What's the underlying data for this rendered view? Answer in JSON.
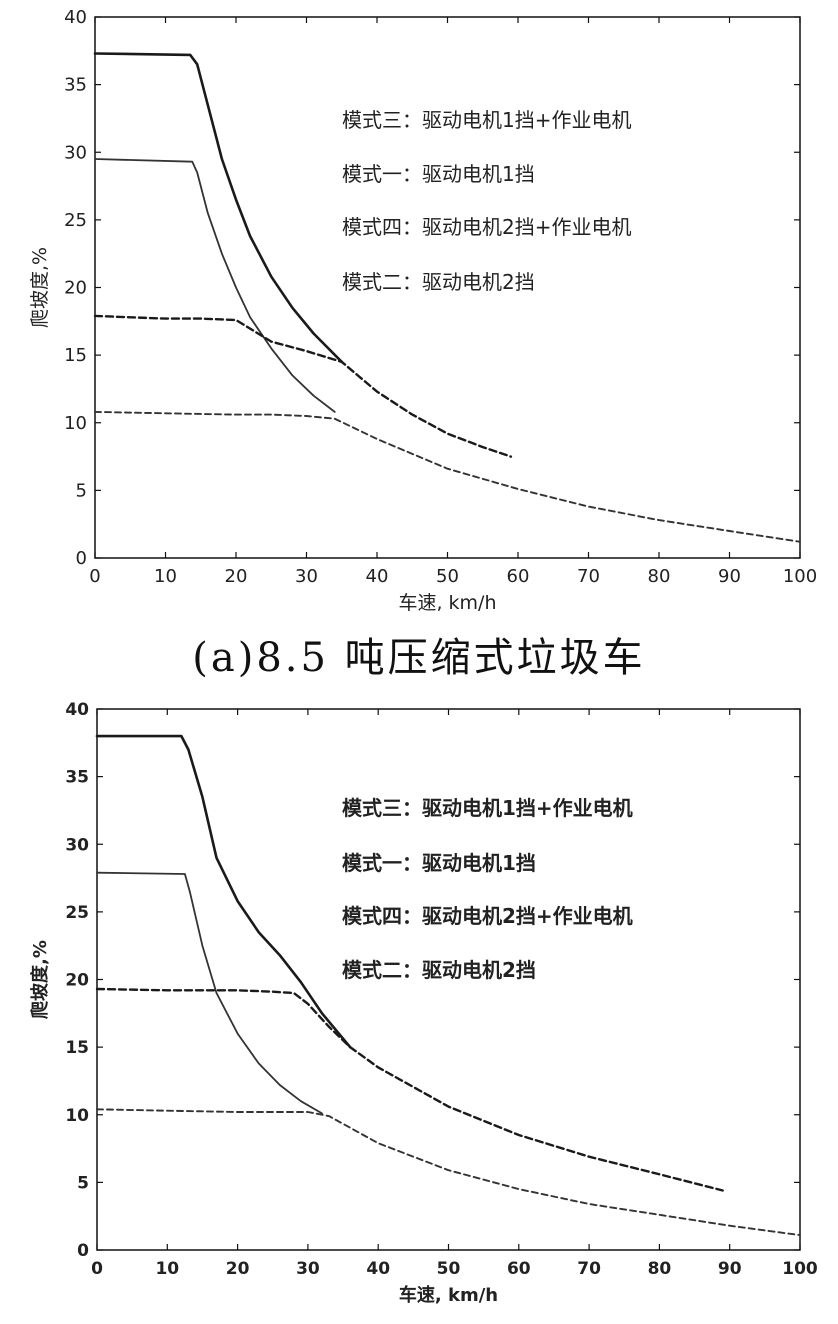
{
  "caption_a": "(a)8.5 吨压缩式垃圾车",
  "chart_data": [
    {
      "id": "a",
      "type": "line",
      "xlabel": "车速, km/h",
      "ylabel": "爬坡度,%",
      "xlim": [
        0,
        100
      ],
      "ylim": [
        0,
        40
      ],
      "xticks": [
        0,
        10,
        20,
        30,
        40,
        50,
        60,
        70,
        80,
        90,
        100
      ],
      "yticks": [
        0,
        5,
        10,
        15,
        20,
        25,
        30,
        35,
        40
      ],
      "grid": false,
      "legend_position": "top-right",
      "legend": [
        "模式三：驱动电机1挡+作业电机",
        "模式一：驱动电机1挡",
        "模式四：驱动电机2挡+作业电机",
        "模式二：驱动电机2挡"
      ],
      "series": [
        {
          "name": "模式三：驱动电机1挡+作业电机",
          "style": "solid-bold",
          "x": [
            0,
            13.5,
            14.5,
            16,
            18,
            20,
            22,
            25,
            28,
            31,
            35
          ],
          "y": [
            37.3,
            37.2,
            36.5,
            33.5,
            29.5,
            26.5,
            23.8,
            20.8,
            18.5,
            16.6,
            14.5
          ]
        },
        {
          "name": "模式一：驱动电机1挡",
          "style": "solid",
          "x": [
            0,
            13.8,
            14.5,
            16,
            18,
            20,
            22,
            25,
            28,
            31,
            34
          ],
          "y": [
            29.5,
            29.3,
            28.5,
            25.5,
            22.5,
            20.0,
            17.8,
            15.5,
            13.5,
            12.0,
            10.8
          ]
        },
        {
          "name": "模式四：驱动电机2挡+作业电机",
          "style": "dashed-bold",
          "x": [
            0,
            5,
            10,
            15,
            20,
            25,
            30,
            35,
            40,
            45,
            50,
            55,
            59
          ],
          "y": [
            17.9,
            17.8,
            17.7,
            17.7,
            17.6,
            16.0,
            15.3,
            14.5,
            12.3,
            10.6,
            9.2,
            8.2,
            7.5
          ]
        },
        {
          "name": "模式二：驱动电机2挡",
          "style": "dashed",
          "x": [
            0,
            10,
            20,
            25,
            30,
            34,
            40,
            50,
            60,
            70,
            80,
            90,
            100
          ],
          "y": [
            10.8,
            10.7,
            10.6,
            10.6,
            10.5,
            10.3,
            8.8,
            6.6,
            5.1,
            3.8,
            2.8,
            2.0,
            1.2
          ]
        }
      ]
    },
    {
      "id": "b",
      "type": "line",
      "xlabel": "车速, km/h",
      "ylabel": "爬坡度,%",
      "xlim": [
        0,
        100
      ],
      "ylim": [
        0,
        40
      ],
      "xticks": [
        0,
        10,
        20,
        30,
        40,
        50,
        60,
        70,
        80,
        90,
        100
      ],
      "yticks": [
        0,
        5,
        10,
        15,
        20,
        25,
        30,
        35,
        40
      ],
      "grid": false,
      "legend_position": "top-right",
      "legend": [
        "模式三：驱动电机1挡+作业电机",
        "模式一：驱动电机1挡",
        "模式四：驱动电机2挡+作业电机",
        "模式二：驱动电机2挡"
      ],
      "series": [
        {
          "name": "模式三：驱动电机1挡+作业电机",
          "style": "solid-bold",
          "x": [
            0,
            12,
            13,
            15,
            17,
            20,
            23,
            26,
            29,
            32,
            36
          ],
          "y": [
            38.0,
            38.0,
            37.0,
            33.5,
            29.0,
            25.8,
            23.5,
            21.8,
            19.8,
            17.5,
            15.0
          ]
        },
        {
          "name": "模式一：驱动电机1挡",
          "style": "solid",
          "x": [
            0,
            12.5,
            13.2,
            15,
            17,
            20,
            23,
            26,
            29,
            32
          ],
          "y": [
            27.9,
            27.8,
            26.5,
            22.5,
            19.0,
            16.0,
            13.8,
            12.2,
            11.0,
            10.1
          ]
        },
        {
          "name": "模式四：驱动电机2挡+作业电机",
          "style": "dashed-bold",
          "x": [
            0,
            10,
            20,
            25,
            28,
            30,
            33,
            36,
            40,
            50,
            60,
            70,
            80,
            89
          ],
          "y": [
            19.3,
            19.2,
            19.2,
            19.1,
            19.0,
            18.2,
            16.5,
            15.0,
            13.5,
            10.6,
            8.5,
            6.9,
            5.6,
            4.4
          ]
        },
        {
          "name": "模式二：驱动电机2挡",
          "style": "dashed",
          "x": [
            0,
            10,
            20,
            30,
            33,
            40,
            50,
            60,
            70,
            80,
            90,
            100
          ],
          "y": [
            10.4,
            10.3,
            10.2,
            10.2,
            9.9,
            7.9,
            5.9,
            4.5,
            3.4,
            2.6,
            1.8,
            1.1
          ]
        }
      ]
    }
  ]
}
